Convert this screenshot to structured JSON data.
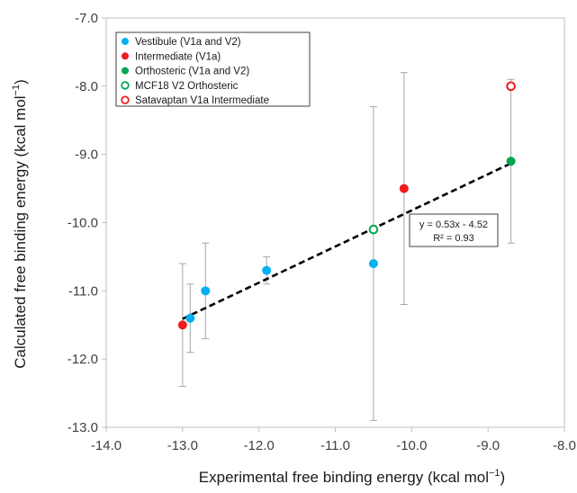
{
  "chart_data": {
    "type": "scatter",
    "title": "",
    "xlabel_main": "Experimental free binding energy (kcal mol",
    "xlabel_sup": "−1",
    "xlabel_end": ")",
    "ylabel_main": "Calculated free binding energy (kcal mol",
    "ylabel_sup": "−1",
    "ylabel_end": ")",
    "xlim": [
      -14.0,
      -8.0
    ],
    "ylim": [
      -13.0,
      -7.0
    ],
    "x_ticks": [
      -14.0,
      -13.0,
      -12.0,
      -11.0,
      -10.0,
      -9.0,
      -8.0
    ],
    "x_tick_labels": [
      "-14.0",
      "-13.0",
      "-12.0",
      "-11.0",
      "-10.0",
      "-9.0",
      "-8.0"
    ],
    "y_ticks": [
      -13.0,
      -12.0,
      -11.0,
      -10.0,
      -9.0,
      -8.0,
      -7.0
    ],
    "y_tick_labels": [
      "-13.0",
      "-12.0",
      "-11.0",
      "-10.0",
      "-9.0",
      "-8.0",
      "-7.0"
    ],
    "grid": false,
    "legend_position": "top-left",
    "series": [
      {
        "name": "Vestibule (V1a and V2)",
        "color": "#00b0f0",
        "marker": "filled",
        "points": [
          {
            "x": -12.9,
            "y": -11.4,
            "err_low": -11.9,
            "err_high": -10.9
          },
          {
            "x": -12.7,
            "y": -11.0,
            "err_low": -11.7,
            "err_high": -10.3
          },
          {
            "x": -11.9,
            "y": -10.7,
            "err_low": -10.9,
            "err_high": -10.5
          },
          {
            "x": -10.5,
            "y": -10.6,
            "err_low": -12.9,
            "err_high": -8.3
          }
        ]
      },
      {
        "name": "Intermediate (V1a)",
        "color": "#ee1c1c",
        "marker": "filled",
        "points": [
          {
            "x": -13.0,
            "y": -11.5,
            "err_low": -12.4,
            "err_high": -10.6
          },
          {
            "x": -10.1,
            "y": -9.5,
            "err_low": -11.2,
            "err_high": -7.8
          }
        ]
      },
      {
        "name": "Orthosteric (V1a and V2)",
        "color": "#00a651",
        "marker": "filled",
        "points": [
          {
            "x": -8.7,
            "y": -9.1,
            "err_low": -10.3,
            "err_high": -7.9
          }
        ]
      },
      {
        "name": "MCF18 V2 Orthosteric",
        "color": "#00a651",
        "marker": "open",
        "points": [
          {
            "x": -10.5,
            "y": -10.1,
            "err_low": null,
            "err_high": null
          }
        ]
      },
      {
        "name": "Satavaptan V1a Intermediate",
        "color": "#ee1c1c",
        "marker": "open",
        "points": [
          {
            "x": -8.7,
            "y": -8.0,
            "err_low": null,
            "err_high": null
          }
        ]
      }
    ],
    "trendline": {
      "slope": 0.53,
      "intercept": -4.52,
      "x_start": -13.0,
      "x_end": -8.7,
      "color": "#000000",
      "style": "dashed",
      "equation_label": "y = 0.53x - 4.52",
      "r2_label": "R² = 0.93"
    }
  }
}
